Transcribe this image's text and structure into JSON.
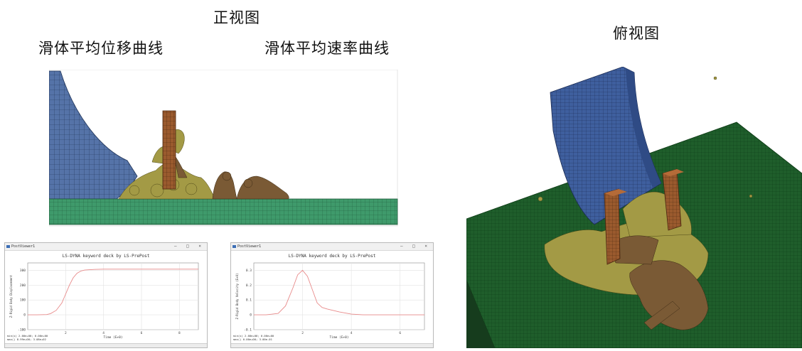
{
  "labels": {
    "front_view": "正视图",
    "top_view": "俯视图",
    "disp_curve": "滑体平均位移曲线",
    "vel_curve": "滑体平均速率曲线"
  },
  "colors": {
    "dam_blue": "#5573a8",
    "ground_green": "#3f9a6b",
    "top_ground": "#1f5e2b",
    "debris_yellow": "#a39a45",
    "debris_brown": "#7a5a35",
    "pillar_brown": "#9a5a2e",
    "curve_red": "#e88a8a"
  },
  "plot_window": {
    "title_bar": "PostViewer1",
    "controls": "—  □  ×"
  },
  "chart_data": [
    {
      "type": "line",
      "title": "LS-DYNA keyword deck by LS-PrePost",
      "xlabel": "Time (E+0)",
      "ylabel": "Z-Rigid Body Displacement",
      "xlim": [
        0,
        9
      ],
      "ylim": [
        -100,
        350
      ],
      "xticks": [
        2,
        4,
        6,
        8
      ],
      "yticks": [
        -100,
        0,
        100,
        200,
        300
      ],
      "series": [
        {
          "x": [
            0,
            0.5,
            1.0,
            1.2,
            1.5,
            1.8,
            2.0,
            2.2,
            2.4,
            2.6,
            2.8,
            3.0,
            3.5,
            4.0,
            5.0,
            6.0,
            7.0,
            8.0,
            9.0
          ],
          "values": [
            0,
            0,
            2,
            8,
            30,
            80,
            140,
            200,
            250,
            280,
            295,
            302,
            306,
            308,
            308,
            308,
            308,
            308,
            308
          ]
        }
      ],
      "footer": [
        "min(x)  2.00e+00;  0.00e+00",
        "max()   8.99e+00;  3.08e+02"
      ]
    },
    {
      "type": "line",
      "title": "LS-DYNA keyword deck by LS-PrePost",
      "xlabel": "Time (E+0)",
      "ylabel": "Z-Rigid Body Velocity (E+0)",
      "xlim": [
        0,
        7
      ],
      "ylim": [
        -0.1,
        0.35
      ],
      "xticks": [
        2,
        4,
        6
      ],
      "yticks": [
        -0.1,
        0,
        0.1,
        0.2,
        0.3
      ],
      "series": [
        {
          "x": [
            0,
            0.5,
            1.0,
            1.3,
            1.6,
            1.8,
            2.0,
            2.2,
            2.4,
            2.6,
            2.8,
            3.0,
            3.5,
            4.0,
            4.5,
            5.0,
            6.0,
            7.0
          ],
          "values": [
            0,
            0,
            0.01,
            0.06,
            0.18,
            0.27,
            0.3,
            0.26,
            0.17,
            0.08,
            0.05,
            0.04,
            0.02,
            0.005,
            0,
            0,
            0,
            0
          ]
        }
      ],
      "footer": [
        "min(x)  2.00e+00;  0.00e+00",
        "max()   0.00e+00;  3.00e-01"
      ]
    }
  ]
}
